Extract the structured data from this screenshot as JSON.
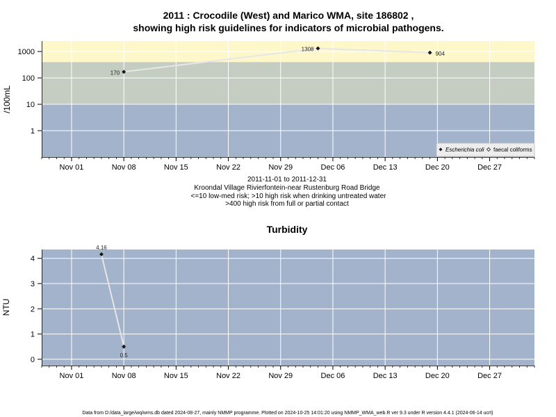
{
  "chart_data": [
    {
      "type": "line",
      "title": "2011 : Crocodile (West) and Marico WMA, site 186802 ,",
      "subtitle": "showing high risk guidelines for indicators of microbial pathogens.",
      "ylabel": "/100mL",
      "yscale": "log",
      "ylim": [
        0.1,
        2500
      ],
      "xlim": [
        "2011-10-28",
        "2012-01-02"
      ],
      "yticks": [
        {
          "value": 1,
          "label": "1"
        },
        {
          "value": 10,
          "label": "10"
        },
        {
          "value": 100,
          "label": "100"
        },
        {
          "value": 1000,
          "label": "1000"
        }
      ],
      "xticks": [
        {
          "date": "2011-11-01",
          "label": "Nov 01"
        },
        {
          "date": "2011-11-08",
          "label": "Nov 08"
        },
        {
          "date": "2011-11-15",
          "label": "Nov 15"
        },
        {
          "date": "2011-11-22",
          "label": "Nov 22"
        },
        {
          "date": "2011-11-29",
          "label": "Nov 29"
        },
        {
          "date": "2011-12-06",
          "label": "Dec 06"
        },
        {
          "date": "2011-12-13",
          "label": "Dec 13"
        },
        {
          "date": "2011-12-20",
          "label": "Dec 20"
        },
        {
          "date": "2011-12-27",
          "label": "Dec 27"
        }
      ],
      "bands": [
        {
          "from": 0.1,
          "to": 10,
          "color": "#a3b3cc",
          "meaning": "low-med risk"
        },
        {
          "from": 10,
          "to": 400,
          "color": "#c5cdc2",
          "meaning": "high risk when drinking untreated water"
        },
        {
          "from": 400,
          "to": 2500,
          "color": "#fdf7c9",
          "meaning": "high risk from full or partial contact"
        }
      ],
      "series": [
        {
          "name": "Escherichia coli",
          "marker": "filled-diamond",
          "points": [
            {
              "x": "2011-11-08",
              "y": 170,
              "label": "170"
            },
            {
              "x": "2011-12-04",
              "y": 1308,
              "label": "1308"
            },
            {
              "x": "2011-12-19",
              "y": 904,
              "label": "904"
            }
          ]
        },
        {
          "name": "faecal coliforms",
          "marker": "open-diamond",
          "points": []
        }
      ],
      "legend": {
        "position": "bottom-right"
      },
      "grid": true,
      "notes": [
        "2011-11-01 to 2011-12-31",
        "Kroondal Village Rivierfontein-near Rustenburg Road Bridge",
        "<=10 low-med risk; >10 high risk when drinking untreated water",
        ">400 high risk from full or partial contact"
      ]
    },
    {
      "type": "line",
      "title": "Turbidity",
      "ylabel": "NTU",
      "ylim": [
        -0.25,
        4.35
      ],
      "xlim": [
        "2011-10-28",
        "2012-01-02"
      ],
      "yticks": [
        {
          "value": 0,
          "label": "0"
        },
        {
          "value": 1,
          "label": "1"
        },
        {
          "value": 2,
          "label": "2"
        },
        {
          "value": 3,
          "label": "3"
        },
        {
          "value": 4,
          "label": "4"
        }
      ],
      "xticks": [
        {
          "date": "2011-11-01",
          "label": "Nov 01"
        },
        {
          "date": "2011-11-08",
          "label": "Nov 08"
        },
        {
          "date": "2011-11-15",
          "label": "Nov 15"
        },
        {
          "date": "2011-11-22",
          "label": "Nov 22"
        },
        {
          "date": "2011-11-29",
          "label": "Nov 29"
        },
        {
          "date": "2011-12-06",
          "label": "Dec 06"
        },
        {
          "date": "2011-12-13",
          "label": "Dec 13"
        },
        {
          "date": "2011-12-20",
          "label": "Dec 20"
        },
        {
          "date": "2011-12-27",
          "label": "Dec 27"
        }
      ],
      "background": "#a3b3cc",
      "series": [
        {
          "points": [
            {
              "x": "2011-11-05",
              "y": 4.16,
              "label": "4.16"
            },
            {
              "x": "2011-11-08",
              "y": 0.5,
              "label": "0.5"
            }
          ]
        }
      ],
      "grid": true
    }
  ],
  "footer": "Data from D:/data_large/wq/wms.db dated 2024-08-27, mainly NMMP programme. Plotted on 2024-10-25 14:01:20 using NMMP_WMA_web.R ver 9.3 under R version 4.4.1 (2024-06-14 ucrt)",
  "colors": {
    "line": "#e6e6e6",
    "grid": "#ffffff",
    "marker": "#1a1a1a",
    "legend_bg": "#ededed"
  }
}
